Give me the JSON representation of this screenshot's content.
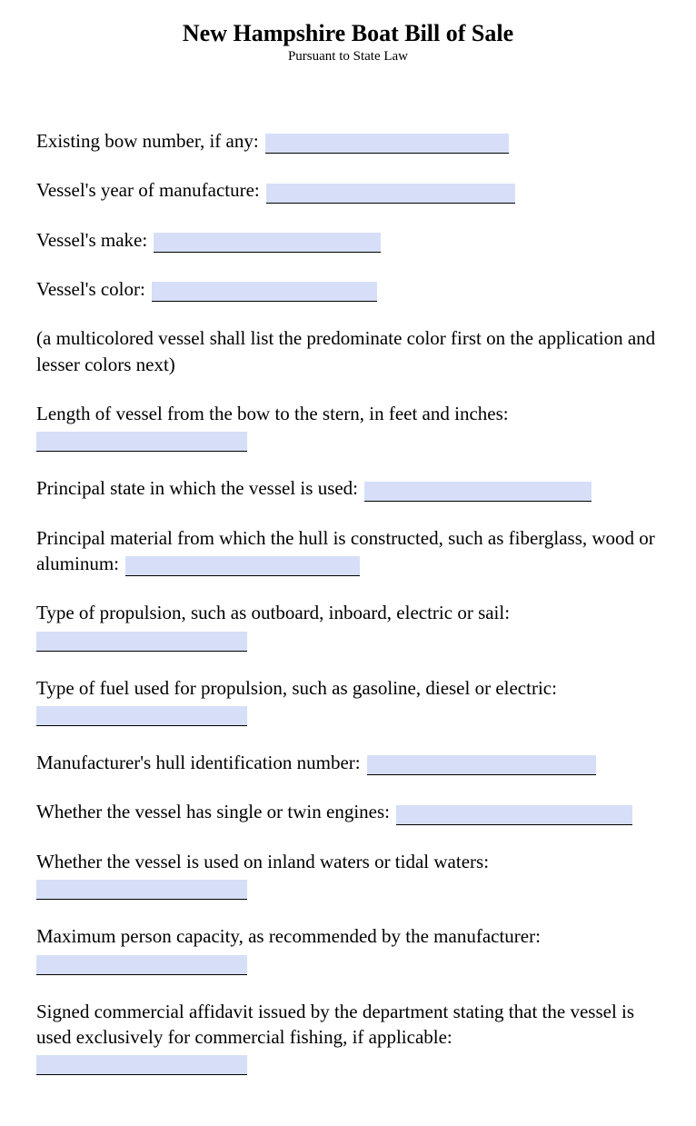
{
  "header": {
    "title": "New Hampshire Boat Bill of Sale",
    "subtitle": "Pursuant to State Law"
  },
  "fields": {
    "bow_number_label": "Existing bow number, if any:",
    "year_label": "Vessel's year of manufacture:",
    "make_label": "Vessel's make:",
    "color_label": "Vessel's color:",
    "color_note": "(a multicolored vessel shall list the predominate color first on the application and lesser colors next)",
    "length_label": "Length of vessel from the bow to the stern, in feet and inches:",
    "principal_state_label": "Principal state in which the vessel is used:",
    "hull_material_label": "Principal material from which the hull is constructed, such as fiberglass, wood or aluminum:",
    "propulsion_label": "Type of propulsion, such as outboard, inboard, electric or sail:",
    "fuel_label": "Type of fuel used for propulsion, such as gasoline, diesel or electric:",
    "hin_label": "Manufacturer's hull identification number:",
    "engines_label": "Whether the vessel has single or twin engines:",
    "waters_label": "Whether the vessel is used on inland waters or tidal waters:",
    "capacity_label": "Maximum person capacity, as recommended by the manufacturer:",
    "affidavit_label": "Signed commercial affidavit issued by the department stating that the vessel is used exclusively for commercial fishing, if applicable:"
  },
  "styling": {
    "input_bg": "#d6dff7",
    "page_bg": "#ffffff",
    "text_color": "#000000",
    "font_family": "Times New Roman"
  },
  "widths": {
    "bow_number": 268,
    "year": 274,
    "make": 250,
    "color": 248,
    "length": 232,
    "principal_state": 250,
    "hull_material": 258,
    "propulsion": 232,
    "fuel": 232,
    "hin": 252,
    "engines": 260,
    "waters": 232,
    "capacity": 232,
    "affidavit": 232
  }
}
